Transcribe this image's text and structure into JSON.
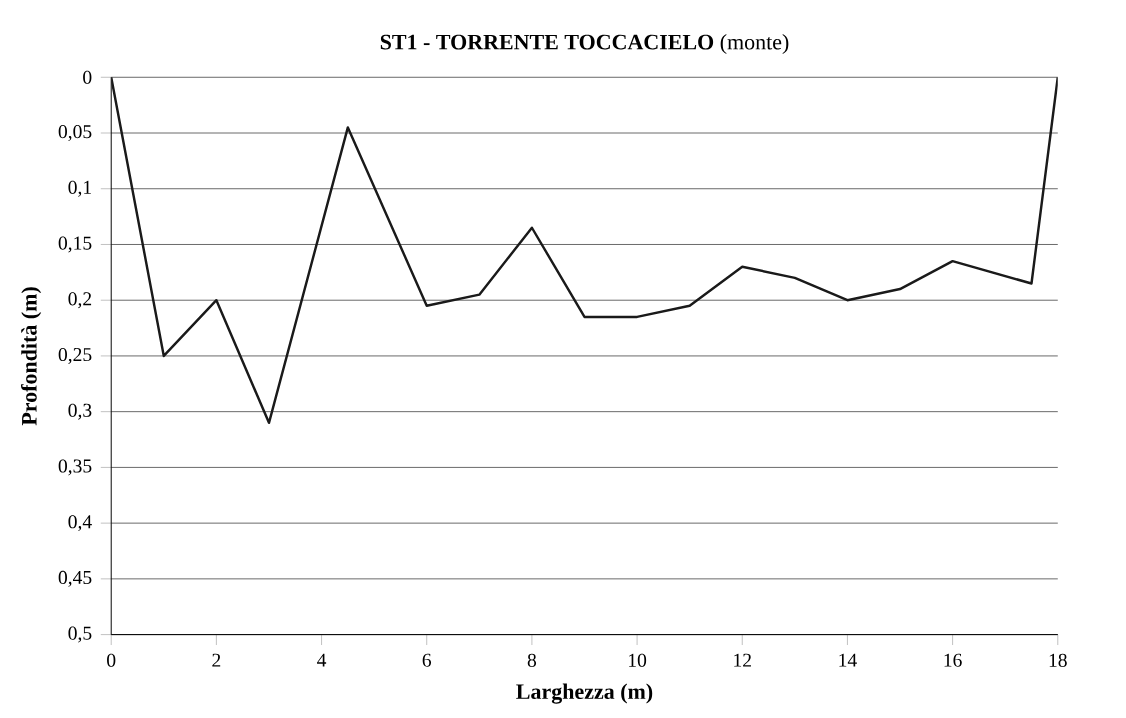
{
  "chart_data": {
    "type": "line",
    "title": "**ST1 - TORRENTE TOCCACIELO** (monte)",
    "xlabel": "Larghezza (m)",
    "ylabel": "Profondità (m)",
    "x": [
      0,
      1,
      2,
      3,
      4.5,
      6,
      7,
      8,
      9,
      10,
      11,
      12,
      13,
      14,
      15,
      16,
      17.5,
      18
    ],
    "values": [
      0,
      0.25,
      0.2,
      0.31,
      0.045,
      0.205,
      0.195,
      0.135,
      0.215,
      0.215,
      0.205,
      0.17,
      0.18,
      0.2,
      0.19,
      0.165,
      0.185,
      0
    ],
    "color": "#1a1a1a",
    "marker": "none",
    "line_style": "solid",
    "grid": "y",
    "xlim": [
      0,
      18
    ],
    "xticks": [
      0,
      2,
      4,
      6,
      8,
      10,
      12,
      14,
      16,
      18
    ],
    "ylim": [
      0.5,
      0
    ],
    "yticks": [
      0,
      {
        "value": 0.05,
        "label": "0,05"
      },
      {
        "value": 0.1,
        "label": "0,1"
      },
      {
        "value": 0.15,
        "label": "0,15"
      },
      {
        "value": 0.2,
        "label": "0,2"
      },
      {
        "value": 0.25,
        "label": "0,25"
      },
      {
        "value": 0.3,
        "label": "0,3"
      },
      {
        "value": 0.35,
        "label": "0,35"
      },
      {
        "value": 0.4,
        "label": "0,4"
      },
      {
        "value": 0.45,
        "label": "0,45"
      },
      {
        "value": 0.5,
        "label": "0,5"
      }
    ]
  }
}
